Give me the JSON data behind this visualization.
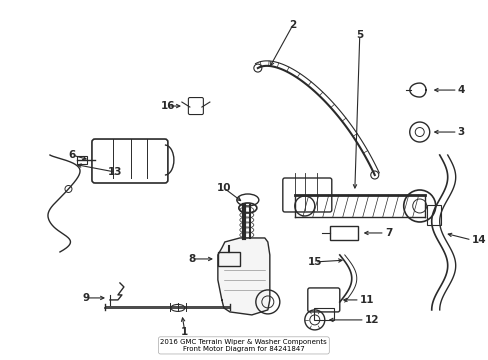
{
  "title": "2016 GMC Terrain Wiper & Washer Components\nFront Motor Diagram for 84241847",
  "background_color": "#ffffff",
  "line_color": "#2a2a2a",
  "fig_width": 4.89,
  "fig_height": 3.6,
  "dpi": 100
}
